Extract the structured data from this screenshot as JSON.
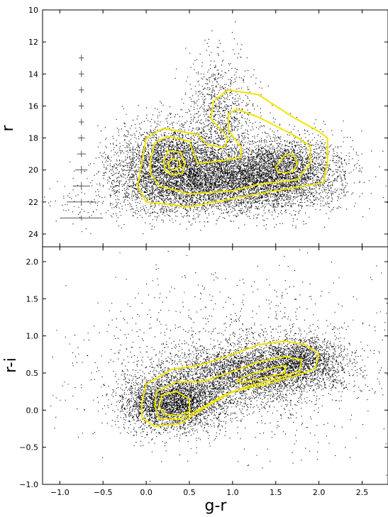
{
  "chart_data": [
    {
      "type": "scatter",
      "panel": "top",
      "xlabel": "",
      "ylabel": "r",
      "xlim": [
        -1.2,
        2.8
      ],
      "ylim": [
        24.8,
        10
      ],
      "y_inverted": true,
      "x_ticks": [
        -1.0,
        -0.5,
        0.0,
        0.5,
        1.0,
        1.5,
        2.0,
        2.5
      ],
      "y_ticks": [
        10,
        12,
        14,
        16,
        18,
        20,
        22,
        24
      ],
      "y_tick_labels": [
        "10",
        "12",
        "14",
        "16",
        "18",
        "20",
        "22",
        "24"
      ],
      "grid": false,
      "point_color": "#000000",
      "contour_color": "#f2e600",
      "density_clumps": [
        {
          "x": 0.3,
          "y": 19.6,
          "sx": 0.35,
          "sy": 1.3,
          "w": 0.3
        },
        {
          "x": 1.0,
          "y": 20.6,
          "sx": 0.55,
          "sy": 0.9,
          "w": 0.35
        },
        {
          "x": 1.6,
          "y": 19.9,
          "sx": 0.35,
          "sy": 1.1,
          "w": 0.2
        },
        {
          "x": 0.85,
          "y": 16.5,
          "sx": 0.2,
          "sy": 1.8,
          "w": 0.08
        },
        {
          "x": 0.5,
          "y": 21.8,
          "sx": 0.7,
          "sy": 0.7,
          "w": 0.07
        }
      ],
      "contours": [
        [
          [
            -0.05,
            19.5
          ],
          [
            0.0,
            18.0
          ],
          [
            0.2,
            17.4
          ],
          [
            0.6,
            17.8
          ],
          [
            0.7,
            18.4
          ],
          [
            0.9,
            18.6
          ],
          [
            0.95,
            18.0
          ],
          [
            0.75,
            16.8
          ],
          [
            0.78,
            15.7
          ],
          [
            0.95,
            15.0
          ],
          [
            1.3,
            15.3
          ],
          [
            1.7,
            16.7
          ],
          [
            2.0,
            17.6
          ],
          [
            2.1,
            18.0
          ],
          [
            2.1,
            19.5
          ],
          [
            2.05,
            20.8
          ],
          [
            1.5,
            21.3
          ],
          [
            1.0,
            21.8
          ],
          [
            0.5,
            22.3
          ],
          [
            0.0,
            22.0
          ],
          [
            -0.1,
            21.0
          ]
        ],
        [
          [
            0.05,
            19.3
          ],
          [
            0.1,
            18.3
          ],
          [
            0.25,
            17.9
          ],
          [
            0.5,
            18.2
          ],
          [
            0.55,
            19.0
          ],
          [
            0.6,
            19.6
          ],
          [
            0.9,
            19.4
          ],
          [
            1.1,
            19.2
          ],
          [
            1.1,
            18.6
          ],
          [
            0.95,
            17.5
          ],
          [
            0.95,
            16.5
          ],
          [
            1.05,
            16.2
          ],
          [
            1.3,
            16.7
          ],
          [
            1.7,
            17.8
          ],
          [
            1.9,
            18.5
          ],
          [
            1.9,
            19.6
          ],
          [
            1.75,
            20.6
          ],
          [
            1.3,
            20.9
          ],
          [
            1.0,
            21.3
          ],
          [
            0.5,
            21.5
          ],
          [
            0.15,
            21.0
          ],
          [
            0.05,
            20.2
          ]
        ],
        [
          [
            0.2,
            19.5
          ],
          [
            0.25,
            18.8
          ],
          [
            0.4,
            18.9
          ],
          [
            0.45,
            19.6
          ],
          [
            0.42,
            20.2
          ],
          [
            0.3,
            20.3
          ],
          [
            0.22,
            20.0
          ]
        ],
        [
          [
            0.25,
            19.6
          ],
          [
            0.3,
            19.3
          ],
          [
            0.38,
            19.4
          ],
          [
            0.4,
            19.8
          ],
          [
            0.33,
            20.0
          ],
          [
            0.27,
            19.9
          ]
        ],
        [
          [
            1.5,
            19.8
          ],
          [
            1.6,
            19.1
          ],
          [
            1.7,
            19.0
          ],
          [
            1.75,
            19.6
          ],
          [
            1.7,
            20.1
          ],
          [
            1.6,
            20.2
          ],
          [
            1.52,
            20.1
          ]
        ]
      ],
      "error_bars": [
        {
          "y": 13,
          "x_err": 0.03,
          "y_err": 0.2
        },
        {
          "y": 14,
          "x_err": 0.03,
          "y_err": 0.2
        },
        {
          "y": 15,
          "x_err": 0.03,
          "y_err": 0.2
        },
        {
          "y": 16,
          "x_err": 0.03,
          "y_err": 0.2
        },
        {
          "y": 17,
          "x_err": 0.03,
          "y_err": 0.2
        },
        {
          "y": 18,
          "x_err": 0.04,
          "y_err": 0.2
        },
        {
          "y": 19,
          "x_err": 0.05,
          "y_err": 0.2
        },
        {
          "y": 20,
          "x_err": 0.07,
          "y_err": 0.25
        },
        {
          "y": 21,
          "x_err": 0.1,
          "y_err": 0.25
        },
        {
          "y": 22,
          "x_err": 0.17,
          "y_err": 0.2
        },
        {
          "y": 23,
          "x_err": 0.25,
          "y_err": 0.15
        }
      ],
      "error_bar_x": -0.75
    },
    {
      "type": "scatter",
      "panel": "bottom",
      "xlabel": "g-r",
      "ylabel": "r-i",
      "xlim": [
        -1.2,
        2.8
      ],
      "ylim": [
        -1.0,
        2.2
      ],
      "x_ticks": [
        -1.0,
        -0.5,
        0.0,
        0.5,
        1.0,
        1.5,
        2.0,
        2.5
      ],
      "x_tick_labels": [
        "−1.0",
        "−0.5",
        "0.0",
        "0.5",
        "1.0",
        "1.5",
        "2.0",
        "2.5"
      ],
      "y_ticks": [
        -1.0,
        -0.5,
        0.0,
        0.5,
        1.0,
        1.5,
        2.0
      ],
      "y_tick_labels": [
        "−1.0",
        "−0.5",
        "0.0",
        "0.5",
        "1.0",
        "1.5",
        "2.0"
      ],
      "grid": false,
      "point_color": "#000000",
      "contour_color": "#f2e600",
      "density_clumps": [
        {
          "x": 0.3,
          "y": 0.1,
          "sx": 0.3,
          "sy": 0.18,
          "w": 0.35
        },
        {
          "x": 1.2,
          "y": 0.5,
          "sx": 0.5,
          "sy": 0.2,
          "w": 0.35
        },
        {
          "x": 1.8,
          "y": 0.7,
          "sx": 0.25,
          "sy": 0.15,
          "w": 0.15
        },
        {
          "x": 1.0,
          "y": 0.6,
          "sx": 0.9,
          "sy": 0.6,
          "w": 0.15
        }
      ],
      "contours": [
        [
          [
            -0.05,
            0.1
          ],
          [
            0.0,
            0.35
          ],
          [
            0.3,
            0.55
          ],
          [
            0.6,
            0.6
          ],
          [
            1.0,
            0.75
          ],
          [
            1.3,
            0.88
          ],
          [
            1.6,
            0.93
          ],
          [
            1.85,
            0.88
          ],
          [
            2.0,
            0.75
          ],
          [
            1.95,
            0.55
          ],
          [
            1.75,
            0.47
          ],
          [
            1.4,
            0.35
          ],
          [
            1.0,
            0.25
          ],
          [
            0.7,
            0.05
          ],
          [
            0.4,
            -0.18
          ],
          [
            0.1,
            -0.22
          ],
          [
            -0.05,
            -0.1
          ]
        ],
        [
          [
            0.1,
            0.05
          ],
          [
            0.12,
            0.25
          ],
          [
            0.35,
            0.38
          ],
          [
            0.65,
            0.38
          ],
          [
            1.0,
            0.52
          ],
          [
            1.3,
            0.65
          ],
          [
            1.6,
            0.72
          ],
          [
            1.8,
            0.68
          ],
          [
            1.78,
            0.53
          ],
          [
            1.5,
            0.42
          ],
          [
            1.2,
            0.33
          ],
          [
            0.9,
            0.2
          ],
          [
            0.6,
            0.0
          ],
          [
            0.4,
            -0.12
          ],
          [
            0.15,
            -0.12
          ]
        ],
        [
          [
            0.15,
            0.05
          ],
          [
            0.18,
            0.2
          ],
          [
            0.35,
            0.25
          ],
          [
            0.5,
            0.15
          ],
          [
            0.5,
            -0.02
          ],
          [
            0.35,
            -0.08
          ],
          [
            0.2,
            -0.05
          ]
        ],
        [
          [
            1.05,
            0.4
          ],
          [
            1.2,
            0.48
          ],
          [
            1.5,
            0.58
          ],
          [
            1.62,
            0.6
          ],
          [
            1.6,
            0.5
          ],
          [
            1.3,
            0.42
          ],
          [
            1.1,
            0.37
          ]
        ]
      ]
    }
  ]
}
